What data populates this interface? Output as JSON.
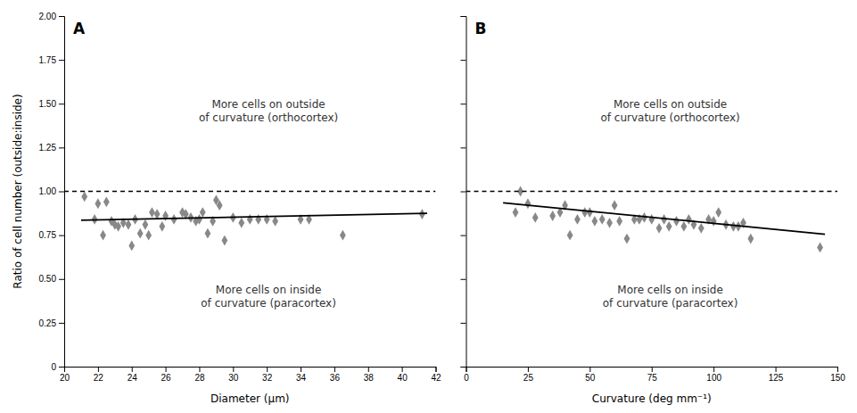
{
  "chart_data": [
    {
      "type": "scatter",
      "title": "A",
      "x_label": "Diameter (μm)",
      "y_label": "Ratio of cell number (outside:inside)",
      "xlim": [
        20,
        42
      ],
      "xticks": [
        20,
        22,
        24,
        26,
        28,
        30,
        32,
        34,
        36,
        38,
        40,
        42
      ],
      "ylim": [
        0,
        2.0
      ],
      "yticks": [
        0,
        0.25,
        {
          "value": 0.5,
          "label": "0.50"
        },
        0.75,
        {
          "value": 1.0,
          "label": "1.00"
        },
        1.25,
        {
          "value": 1.5,
          "label": "1.50"
        },
        1.75,
        {
          "value": 2.0,
          "label": "2.00"
        }
      ],
      "grid": false,
      "series": [
        {
          "type": "scatter",
          "color": "#888888",
          "marker": "diamond",
          "x": [
            21.2,
            21.8,
            22.0,
            22.3,
            22.5,
            22.8,
            23.0,
            23.2,
            23.5,
            23.8,
            24.0,
            24.2,
            24.5,
            24.8,
            25.0,
            25.2,
            25.5,
            25.8,
            26.0,
            26.5,
            27.0,
            27.2,
            27.5,
            27.8,
            28.0,
            28.2,
            28.5,
            28.8,
            29.0,
            29.2,
            29.5,
            30.0,
            30.5,
            31.0,
            31.5,
            32.0,
            32.5,
            34.0,
            34.5,
            36.5,
            41.2
          ],
          "values": [
            0.97,
            0.84,
            0.93,
            0.75,
            0.94,
            0.83,
            0.81,
            0.8,
            0.82,
            0.81,
            0.69,
            0.84,
            0.76,
            0.81,
            0.75,
            0.88,
            0.87,
            0.8,
            0.86,
            0.84,
            0.88,
            0.87,
            0.85,
            0.83,
            0.84,
            0.88,
            0.76,
            0.83,
            0.95,
            0.92,
            0.72,
            0.85,
            0.82,
            0.84,
            0.84,
            0.84,
            0.83,
            0.84,
            0.84,
            0.75,
            0.87
          ]
        },
        {
          "type": "line",
          "color": "#000000",
          "line_style": "solid",
          "x": [
            21.0,
            41.5
          ],
          "values": [
            0.835,
            0.875
          ]
        },
        {
          "type": "hline",
          "color": "#000000",
          "line_style": "dashed",
          "values": [
            1.0
          ]
        }
      ],
      "annotations": [
        {
          "text": "More cells on outside\nof curvature (orthocortex)"
        },
        {
          "text": "More cells on inside\nof curvature (paracortex)"
        }
      ]
    },
    {
      "type": "scatter",
      "title": "B",
      "x_label": "Curvature (deg mm⁻¹)",
      "xlim": [
        0,
        150
      ],
      "xticks": [
        0,
        25,
        50,
        75,
        100,
        125,
        150
      ],
      "ylim": [
        0,
        2.0
      ],
      "yticks": [
        0,
        0.25,
        0.5,
        0.75,
        1.0,
        1.25,
        1.5,
        1.75,
        2.0
      ],
      "tick_labels": "x",
      "grid": false,
      "series": [
        {
          "type": "scatter",
          "color": "#888888",
          "marker": "diamond",
          "x": [
            20,
            22,
            25,
            28,
            35,
            38,
            40,
            42,
            45,
            48,
            50,
            52,
            55,
            58,
            60,
            62,
            65,
            68,
            70,
            72,
            75,
            78,
            80,
            82,
            85,
            88,
            90,
            92,
            95,
            98,
            100,
            102,
            105,
            108,
            110,
            112,
            115,
            143
          ],
          "values": [
            0.88,
            1.0,
            0.93,
            0.85,
            0.86,
            0.88,
            0.92,
            0.75,
            0.84,
            0.88,
            0.88,
            0.83,
            0.84,
            0.82,
            0.92,
            0.83,
            0.73,
            0.84,
            0.84,
            0.85,
            0.84,
            0.79,
            0.84,
            0.8,
            0.83,
            0.8,
            0.84,
            0.81,
            0.79,
            0.84,
            0.83,
            0.88,
            0.81,
            0.8,
            0.8,
            0.82,
            0.73,
            0.68
          ]
        },
        {
          "type": "line",
          "color": "#000000",
          "line_style": "solid",
          "x": [
            15,
            145
          ],
          "values": [
            0.935,
            0.755
          ]
        },
        {
          "type": "hline",
          "color": "#000000",
          "line_style": "dashed",
          "values": [
            1.0
          ]
        }
      ],
      "annotations": [
        {
          "text": "More cells on outside\nof curvature (orthocortex)"
        },
        {
          "text": "More cells on inside\nof curvature (paracortex)"
        }
      ]
    }
  ]
}
